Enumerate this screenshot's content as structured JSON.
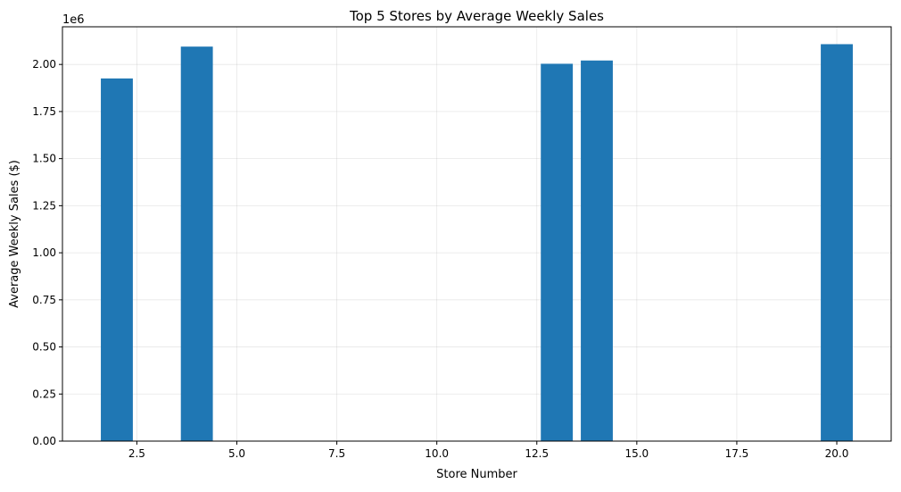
{
  "chart_data": {
    "type": "bar",
    "title": "Top 5 Stores by Average Weekly Sales",
    "xlabel": "Store Number",
    "ylabel": "Average Weekly Sales ($)",
    "y_offset_label": "1e6",
    "x": [
      2,
      4,
      13,
      14,
      20
    ],
    "values": [
      1925751,
      2094713,
      2003620,
      2020978,
      2107677
    ],
    "xlim": [
      0.64,
      21.36
    ],
    "ylim": [
      0,
      2200000
    ],
    "x_ticks": [
      2.5,
      5.0,
      7.5,
      10.0,
      12.5,
      15.0,
      17.5,
      20.0
    ],
    "x_tick_labels": [
      "2.5",
      "5.0",
      "7.5",
      "10.0",
      "12.5",
      "15.0",
      "17.5",
      "20.0"
    ],
    "y_ticks": [
      0,
      250000,
      500000,
      750000,
      1000000,
      1250000,
      1500000,
      1750000,
      2000000
    ],
    "y_tick_labels": [
      "0.00",
      "0.25",
      "0.50",
      "0.75",
      "1.00",
      "1.25",
      "1.50",
      "1.75",
      "2.00"
    ],
    "grid": true,
    "bar_color": "#1f77b4"
  }
}
